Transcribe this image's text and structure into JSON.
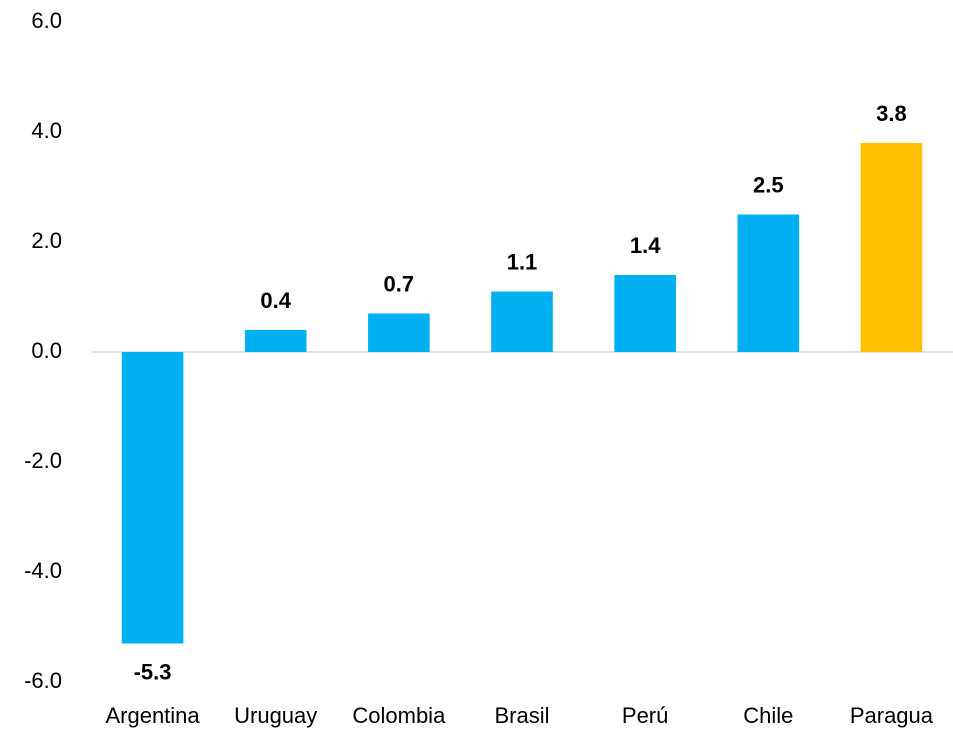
{
  "chart_data": {
    "type": "bar",
    "categories": [
      "Argentina",
      "Uruguay",
      "Colombia",
      "Brasil",
      "Perú",
      "Chile",
      "Paragua"
    ],
    "values": [
      -5.3,
      0.4,
      0.7,
      1.1,
      1.4,
      2.5,
      3.8
    ],
    "colors": [
      "#00b0f0",
      "#00b0f0",
      "#00b0f0",
      "#00b0f0",
      "#00b0f0",
      "#00b0f0",
      "#ffc000"
    ],
    "ylim": [
      -6,
      6
    ],
    "yticks": [
      {
        "value": -6,
        "label": "-6.0"
      },
      {
        "value": -4,
        "label": "-4.0"
      },
      {
        "value": -2,
        "label": "-2.0"
      },
      {
        "value": 0,
        "label": "0.0"
      },
      {
        "value": 2,
        "label": "2.0"
      },
      {
        "value": 4,
        "label": "4.0"
      },
      {
        "value": 6,
        "label": "6.0"
      }
    ],
    "grid": false
  }
}
